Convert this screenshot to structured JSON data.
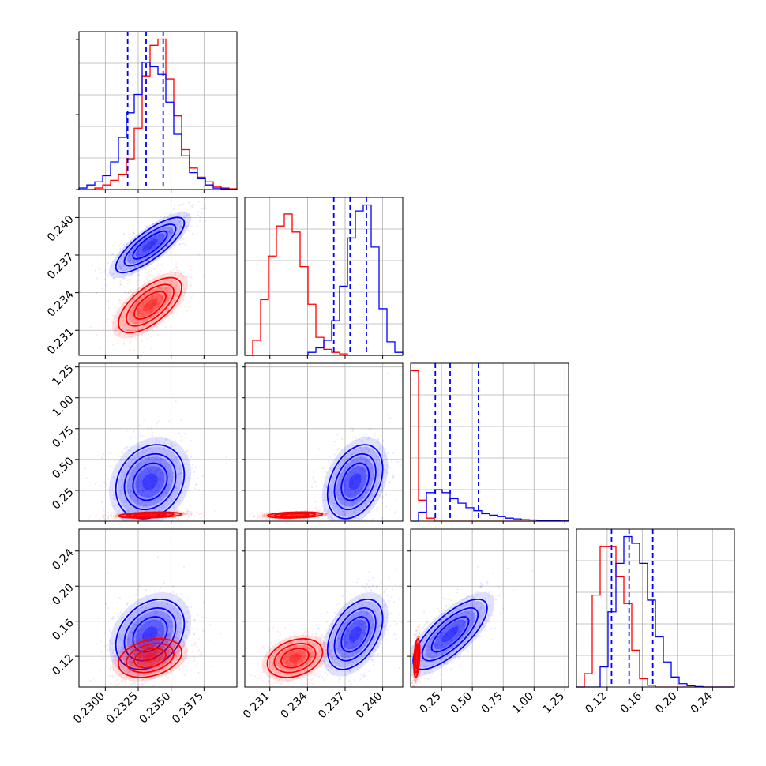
{
  "chart_data": {
    "type": "corner",
    "grid": true,
    "parameters": [
      {
        "ticks": [
          0.23,
          0.2325,
          0.235,
          0.2375
        ],
        "tick_labels": [
          "0.2300",
          "0.2325",
          "0.2350",
          "0.2375"
        ],
        "range": [
          0.228,
          0.24
        ]
      },
      {
        "ticks": [
          0.231,
          0.234,
          0.237,
          0.24
        ],
        "tick_labels": [
          "0.231",
          "0.234",
          "0.237",
          "0.240"
        ],
        "range": [
          0.229,
          0.2416
        ]
      },
      {
        "ticks": [
          0.25,
          0.5,
          0.75,
          1.0,
          1.25
        ],
        "tick_labels": [
          "0.25",
          "0.50",
          "0.75",
          "1.00",
          "1.25"
        ],
        "range": [
          0.0,
          1.28
        ]
      },
      {
        "ticks": [
          0.12,
          0.16,
          0.2,
          0.24
        ],
        "tick_labels": [
          "0.12",
          "0.16",
          "0.20",
          "0.24"
        ],
        "range": [
          0.085,
          0.265
        ]
      }
    ],
    "series": [
      {
        "color": "#0000ff",
        "means": [
          0.2334,
          0.2378,
          0.32,
          0.145
        ],
        "sds": [
          0.0013,
          0.0011,
          0.15,
          0.02
        ],
        "correlations": [
          [
            1,
            0.8,
            0.2,
            0.3
          ],
          [
            0.8,
            1,
            0.35,
            0.45
          ],
          [
            0.2,
            0.35,
            1,
            0.75
          ],
          [
            0.3,
            0.45,
            0.75,
            1
          ]
        ],
        "quantiles": [
          [
            0.2317,
            0.2331,
            0.2344
          ],
          [
            0.2361,
            0.2374,
            0.2387
          ],
          [
            0.2,
            0.32,
            0.55
          ],
          [
            0.125,
            0.145,
            0.172
          ]
        ],
        "histograms": [
          [
            0.01,
            0.03,
            0.05,
            0.09,
            0.18,
            0.34,
            0.5,
            0.62,
            0.83,
            0.8,
            0.75,
            0.57,
            0.36,
            0.22,
            0.11,
            0.07,
            0.03,
            0.01,
            0.005,
            0
          ],
          [
            0,
            0,
            0,
            0,
            0,
            0,
            0,
            0,
            0.02,
            0.05,
            0.1,
            0.23,
            0.46,
            0.78,
            0.96,
            1.0,
            0.72,
            0.31,
            0.09,
            0.02
          ],
          [
            0,
            0.06,
            0.19,
            0.21,
            0.19,
            0.15,
            0.12,
            0.09,
            0.07,
            0.05,
            0.04,
            0.03,
            0.02,
            0.015,
            0.01,
            0.008,
            0.005,
            0.003,
            0.002,
            0.001
          ],
          [
            0,
            0,
            0,
            0.12,
            0.45,
            0.74,
            0.9,
            0.86,
            0.74,
            0.52,
            0.3,
            0.15,
            0.06,
            0.02,
            0.008,
            0.003,
            0,
            0,
            0,
            0
          ]
        ]
      },
      {
        "color": "#ff0000",
        "means": [
          0.2334,
          0.233,
          0.05,
          0.118
        ],
        "sds": [
          0.0012,
          0.0011,
          0.012,
          0.011
        ],
        "correlations": [
          [
            1,
            0.65,
            0.3,
            0.3
          ],
          [
            0.65,
            1,
            0.25,
            0.3
          ],
          [
            0.3,
            0.25,
            1,
            0.35
          ],
          [
            0.3,
            0.3,
            0.35,
            1
          ]
        ],
        "histograms": [
          [
            0,
            0,
            0.01,
            0.03,
            0.06,
            0.1,
            0.2,
            0.4,
            0.74,
            0.94,
            0.98,
            0.72,
            0.48,
            0.26,
            0.14,
            0.08,
            0.05,
            0.02,
            0.01,
            0.005
          ],
          [
            0,
            0.1,
            0.37,
            0.66,
            0.86,
            0.94,
            0.82,
            0.59,
            0.34,
            0.12,
            0.04,
            0.02,
            0.01,
            0,
            0,
            0,
            0,
            0,
            0,
            0
          ],
          [
            1.0,
            0.14,
            0.02,
            0,
            0,
            0,
            0,
            0,
            0,
            0,
            0,
            0,
            0,
            0,
            0,
            0,
            0,
            0,
            0,
            0
          ],
          [
            0,
            0.08,
            0.55,
            0.84,
            0.84,
            0.66,
            0.5,
            0.22,
            0.05,
            0.01,
            0,
            0,
            0,
            0,
            0,
            0,
            0,
            0,
            0,
            0
          ]
        ]
      }
    ]
  }
}
